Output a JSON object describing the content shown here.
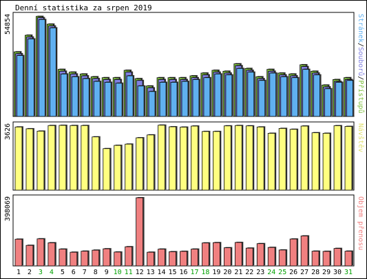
{
  "chart_data": {
    "type": "bar",
    "title": "Denní statistika za srpen 2019",
    "categories": [
      "1",
      "2",
      "3",
      "4",
      "5",
      "6",
      "7",
      "8",
      "9",
      "10",
      "11",
      "12",
      "13",
      "14",
      "15",
      "16",
      "17",
      "18",
      "19",
      "20",
      "21",
      "22",
      "23",
      "24",
      "25",
      "26",
      "27",
      "28",
      "29",
      "30",
      "31"
    ],
    "weekend_days": [
      "3",
      "4",
      "10",
      "11",
      "17",
      "18",
      "24",
      "25",
      "31"
    ],
    "grid": false,
    "panels": [
      {
        "id": "hits",
        "ymax_label": "54854",
        "ymax": 54854,
        "right_label_parts": [
          "Stránek",
          "Souborů",
          "Přístupů"
        ],
        "series": [
          {
            "name": "Přístupů",
            "color": "#80c040",
            "values": [
              35000,
              44000,
              54200,
              50000,
              25500,
              24000,
              23000,
              21500,
              21000,
              21000,
              25000,
              20500,
              16500,
              21000,
              21000,
              21000,
              22000,
              23500,
              25000,
              24500,
              28500,
              26000,
              21500,
              25500,
              23500,
              23000,
              28000,
              24500,
              17000,
              20000,
              21000
            ]
          },
          {
            "name": "Souborů",
            "color": "#8080e0",
            "values": [
              34000,
              43000,
              53500,
              49000,
              24500,
              23000,
              22000,
              20500,
              20000,
              20000,
              24000,
              19500,
              15500,
              20000,
              20000,
              20000,
              21000,
              22500,
              24000,
              23500,
              27500,
              25000,
              20500,
              24500,
              22500,
              22000,
              27000,
              23500,
              16000,
              19000,
              20000
            ]
          },
          {
            "name": "Stránek",
            "color": "#60b0f0",
            "values": [
              33000,
              42000,
              52500,
              48000,
              23000,
              21500,
              20500,
              19000,
              18500,
              18000,
              22000,
              16500,
              13500,
              18500,
              18500,
              19000,
              20000,
              21000,
              23000,
              22500,
              26000,
              24000,
              19500,
              23500,
              21500,
              21000,
              25500,
              22500,
              15000,
              18500,
              19500
            ]
          }
        ]
      },
      {
        "id": "visits",
        "ymax_label": "3626",
        "ymax": 3626,
        "right_label_parts": [
          "Návštěv"
        ],
        "series": [
          {
            "name": "Návštěv",
            "color": "#ffff80",
            "values": [
              3500,
              3400,
              3270,
              3580,
              3590,
              3580,
              3580,
              2950,
              2300,
              2480,
              2550,
              2900,
              3060,
              3600,
              3510,
              3490,
              3550,
              3250,
              3250,
              3560,
              3580,
              3560,
              3500,
              3150,
              3420,
              3370,
              3550,
              3180,
              3150,
              3570,
              3530
            ]
          }
        ]
      },
      {
        "id": "volume",
        "ymax_label": "398069",
        "ymax": 398069,
        "right_label_parts": [
          "Objem přenosu"
        ],
        "series": [
          {
            "name": "Objem přenosu",
            "color": "#f08080",
            "values": [
              156000,
              120000,
              158000,
              135000,
              98000,
              80000,
              86000,
              92000,
              100000,
              81000,
              112000,
              398069,
              80000,
              98000,
              83000,
              85000,
              98000,
              134000,
              136000,
              106000,
              137000,
              104000,
              130000,
              108000,
              93000,
              157000,
              175000,
              86000,
              85000,
              102000,
              86000
            ]
          }
        ]
      }
    ]
  },
  "colors": {
    "weekday_label": "#000000",
    "weekend_label": "#00a000",
    "frame": "#000000",
    "shadow": "#404040"
  }
}
